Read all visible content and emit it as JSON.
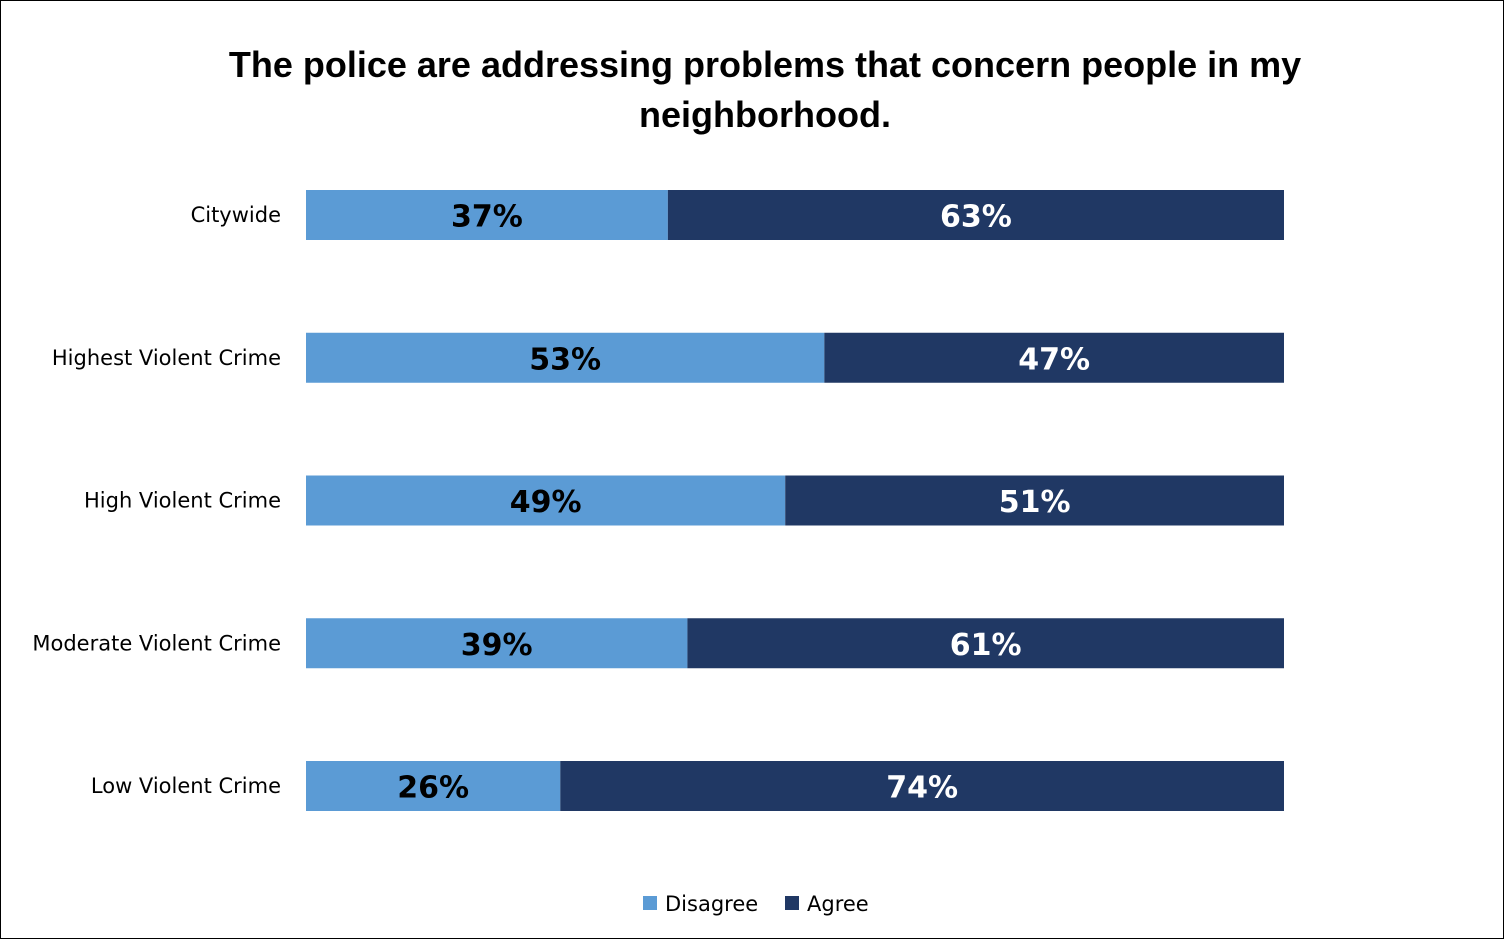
{
  "chart_data": {
    "type": "bar",
    "orientation": "horizontal",
    "stacked": true,
    "title": "The police are addressing problems that concern people in my neighborhood.",
    "categories": [
      "Citywide",
      "Highest Violent Crime",
      "High Violent Crime",
      "Moderate Violent Crime",
      "Low Violent Crime"
    ],
    "series": [
      {
        "name": "Disagree",
        "color": "#5b9bd5",
        "label_color": "#000000",
        "values": [
          37,
          53,
          49,
          39,
          26
        ],
        "labels": [
          "37%",
          "53%",
          "49%",
          "39%",
          "26%"
        ]
      },
      {
        "name": "Agree",
        "color": "#203864",
        "label_color": "#ffffff",
        "values": [
          63,
          47,
          51,
          61,
          74
        ],
        "labels": [
          "63%",
          "47%",
          "51%",
          "61%",
          "74%"
        ]
      }
    ],
    "xlim": [
      0,
      100
    ],
    "legend_position": "bottom",
    "grid": false
  }
}
